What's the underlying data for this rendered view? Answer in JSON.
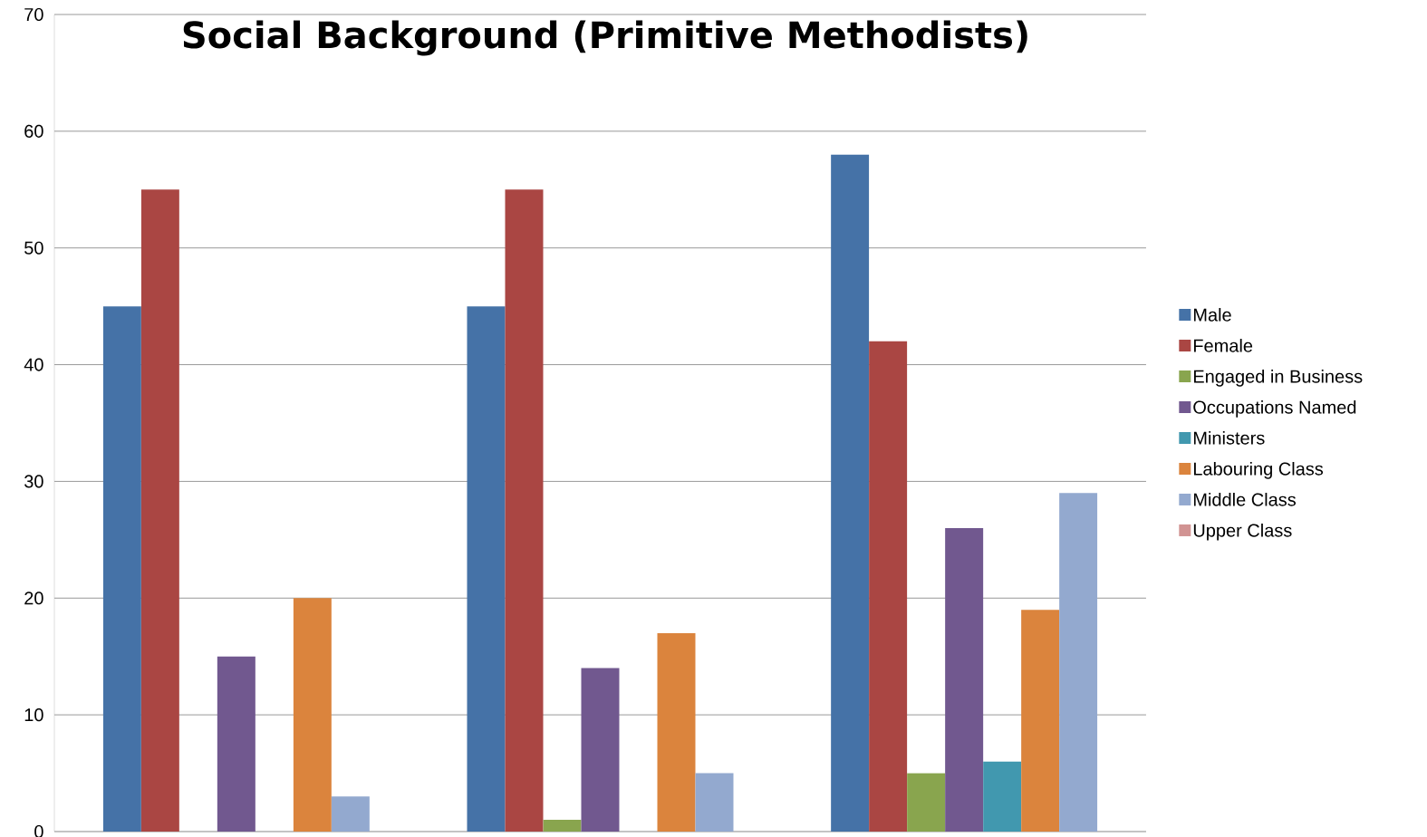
{
  "chart_data": {
    "type": "bar",
    "title": "Social Background (Primitive Methodists)",
    "categories": [
      null,
      null,
      null
    ],
    "series": [
      {
        "name": "Male",
        "color": "#4572a7",
        "values": [
          45,
          45,
          58
        ]
      },
      {
        "name": "Female",
        "color": "#aa4643",
        "values": [
          55,
          55,
          42
        ]
      },
      {
        "name": "Engaged in Business",
        "color": "#89a54e",
        "values": [
          null,
          1,
          5
        ]
      },
      {
        "name": "Occupations Named",
        "color": "#71588f",
        "values": [
          15,
          14,
          26
        ]
      },
      {
        "name": "Ministers",
        "color": "#4198af",
        "values": [
          null,
          null,
          6
        ]
      },
      {
        "name": "Labouring Class",
        "color": "#db843d",
        "values": [
          20,
          17,
          19
        ]
      },
      {
        "name": "Middle Class",
        "color": "#93a9cf",
        "values": [
          3,
          5,
          29
        ]
      },
      {
        "name": "Upper Class",
        "color": "#d19392",
        "values": [
          null,
          null,
          null
        ]
      }
    ],
    "ylim": [
      0,
      70
    ],
    "yticks": [
      0,
      10,
      20,
      30,
      40,
      50,
      60,
      70
    ],
    "grid": "y",
    "legend": "right",
    "tick_labels": "y"
  }
}
